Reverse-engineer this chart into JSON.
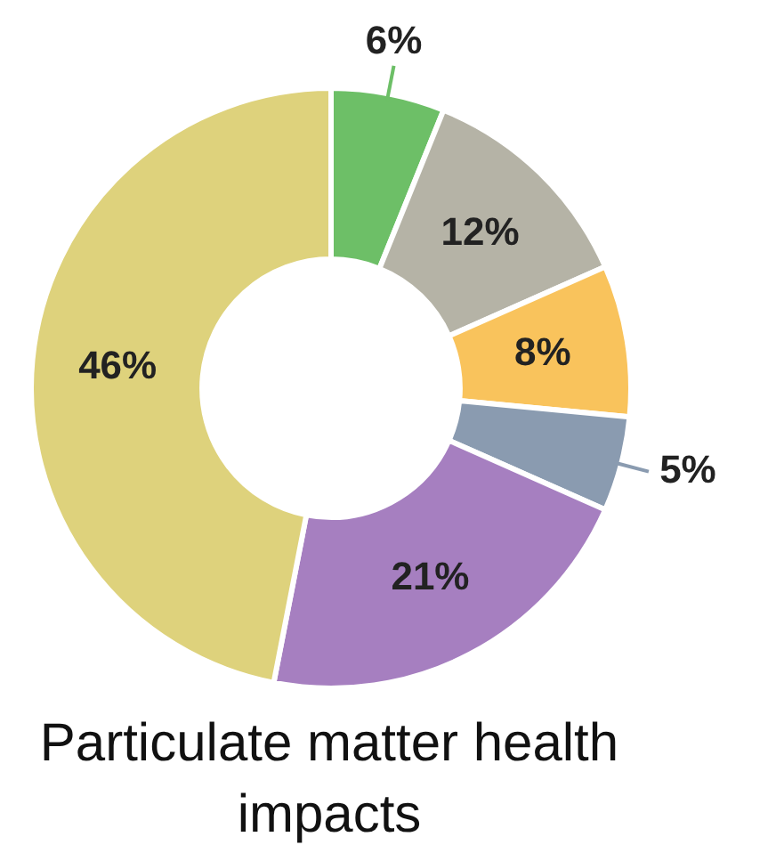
{
  "chart_data": {
    "type": "donut",
    "title": "Particulate matter health impacts",
    "categories": [
      null,
      null,
      null,
      null,
      null,
      null
    ],
    "values": [
      6,
      12,
      8,
      5,
      21,
      46
    ],
    "colors": [
      "#6dbf67",
      "#b5b3a6",
      "#f9c35c",
      "#8a9bb0",
      "#a67fc0",
      "#ded27c"
    ],
    "value_labels": [
      "6%",
      "12%",
      "8%",
      "5%",
      "21%",
      "46%"
    ],
    "legend": false
  }
}
